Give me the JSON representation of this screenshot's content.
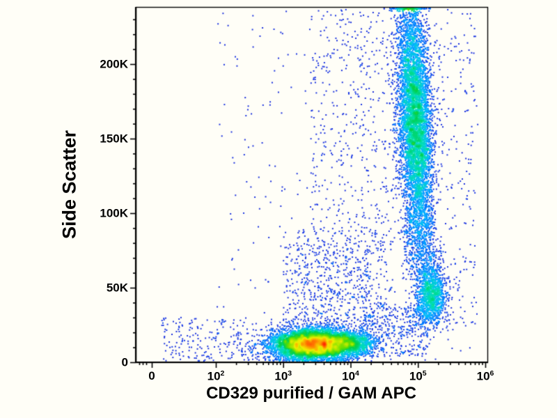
{
  "figure": {
    "background": "#fffef7",
    "kind": "flow-cytometry-dot-plot"
  },
  "chart_data": {
    "type": "scatter",
    "variant": "flow-cytometry-pseudocolor-density",
    "xlabel": "CD329 purified / GAM APC",
    "ylabel": "Side Scatter",
    "x_scale": "biexponential-log",
    "x_decades": [
      2,
      6
    ],
    "y_range": [
      0,
      238000
    ],
    "x_ticks": [
      {
        "value": 0,
        "label": "0"
      },
      {
        "value": 100,
        "base": "10",
        "exp": "2"
      },
      {
        "value": 1000,
        "base": "10",
        "exp": "3"
      },
      {
        "value": 10000,
        "base": "10",
        "exp": "4"
      },
      {
        "value": 100000,
        "base": "10",
        "exp": "5"
      },
      {
        "value": 1000000,
        "base": "10",
        "exp": "6"
      }
    ],
    "y_ticks": [
      {
        "value": 0,
        "label": "0"
      },
      {
        "value": 50000,
        "label": "50K"
      },
      {
        "value": 100000,
        "label": "100K"
      },
      {
        "value": 150000,
        "label": "150K"
      },
      {
        "value": 200000,
        "label": "200K"
      }
    ],
    "y_minor_step": 10000,
    "axis_color": "#000000",
    "colormap": [
      {
        "t": 0.0,
        "color": "#2222cc"
      },
      {
        "t": 0.26,
        "color": "#1a3ae6"
      },
      {
        "t": 0.36,
        "color": "#0078ff"
      },
      {
        "t": 0.46,
        "color": "#00b8ff"
      },
      {
        "t": 0.56,
        "color": "#00e0b0"
      },
      {
        "t": 0.64,
        "color": "#00d050"
      },
      {
        "t": 0.74,
        "color": "#66e000"
      },
      {
        "t": 0.84,
        "color": "#f2f000"
      },
      {
        "t": 0.92,
        "color": "#ff8c00"
      },
      {
        "t": 1.0,
        "color": "#ff2200"
      }
    ],
    "density_gamma": 0.35,
    "seed": 42,
    "populations": [
      {
        "name": "low-scatter-main",
        "n": 7000,
        "x_log_mean": 3.45,
        "x_log_sd": 0.3,
        "y_mean": 12000,
        "y_sd": 5000
      },
      {
        "name": "low-scatter-right-lobe",
        "n": 1100,
        "x_log_mean": 3.97,
        "x_log_sd": 0.18,
        "y_mean": 12500,
        "y_sd": 4500
      },
      {
        "name": "high-scatter-positive",
        "n": 6500,
        "x_log_mean": 4.96,
        "x_log_sd": 0.12,
        "y_mean": 163000,
        "y_sd": 42000,
        "x_log_slope_per_100k": -0.1
      },
      {
        "name": "mid-scatter-positive",
        "n": 1300,
        "x_log_mean": 5.19,
        "x_log_sd": 0.11,
        "y_mean": 45000,
        "y_sd": 10000
      },
      {
        "name": "noise-wide",
        "n": 350,
        "x_log_range": [
          2.0,
          5.9
        ],
        "y_range": [
          500,
          237000
        ]
      },
      {
        "name": "noise-mid-column",
        "n": 450,
        "x_log_range": [
          3.4,
          4.85
        ],
        "y_range": [
          80000,
          237000
        ]
      },
      {
        "name": "noise-mid-low",
        "n": 350,
        "x_log_range": [
          3.2,
          4.6
        ],
        "y_range": [
          22000,
          90000
        ]
      },
      {
        "name": "noise-left-low",
        "n": 300,
        "x_log_range": [
          1.2,
          3.2
        ],
        "y_range": [
          500,
          30000
        ]
      },
      {
        "name": "bridge-low",
        "n": 400,
        "x_log_range": [
          4.2,
          5.15
        ],
        "y_range": [
          4000,
          40000
        ]
      },
      {
        "name": "bridge-mid-high",
        "n": 350,
        "x_log_range": [
          4.8,
          5.25
        ],
        "y_range": [
          58000,
          105000
        ]
      },
      {
        "name": "halo-above-main",
        "n": 350,
        "x_log_range": [
          3.0,
          4.3
        ],
        "y_range": [
          24000,
          80000
        ]
      },
      {
        "name": "noise-right-high",
        "n": 150,
        "x_log_range": [
          5.0,
          5.85
        ],
        "y_range": [
          90000,
          235000
        ]
      },
      {
        "name": "noise-right-low",
        "n": 80,
        "x_log_range": [
          5.3,
          5.85
        ],
        "y_range": [
          20000,
          80000
        ]
      }
    ]
  }
}
